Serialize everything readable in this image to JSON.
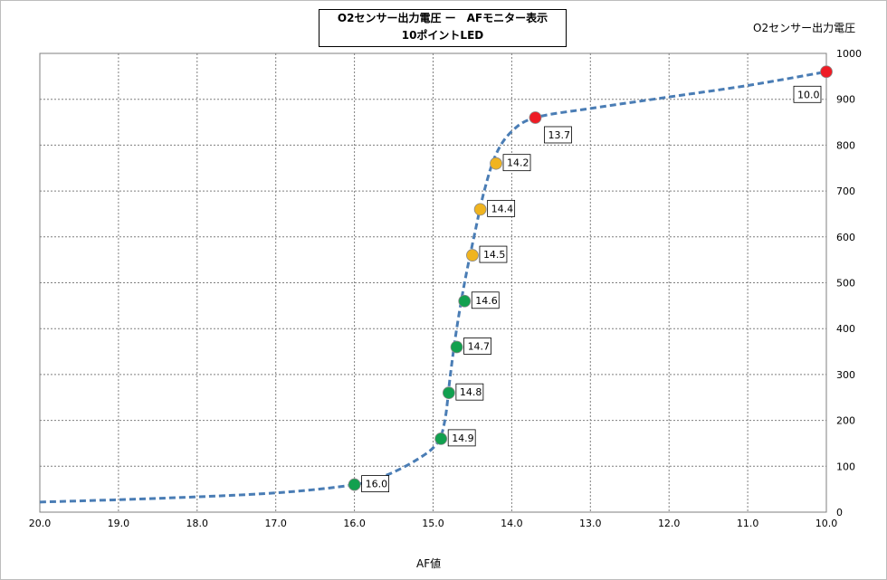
{
  "chart_data": {
    "type": "scatter",
    "title": "O2センサー出力電圧 ー　AFモニター表示",
    "subtitle": "10ポイントLED",
    "xlabel": "AF値",
    "ylabel": "O2センサー出力電圧",
    "xlim": [
      20.0,
      10.0
    ],
    "x_reversed": true,
    "ylim": [
      0,
      1000
    ],
    "x_ticks": [
      "20.0",
      "19.0",
      "18.0",
      "17.0",
      "16.0",
      "15.0",
      "14.0",
      "13.0",
      "12.0",
      "11.0",
      "10.0"
    ],
    "y_ticks": [
      "0",
      "100",
      "200",
      "300",
      "400",
      "500",
      "600",
      "700",
      "800",
      "900",
      "1000"
    ],
    "grid": true,
    "curve": {
      "style": "dashed",
      "color": "#4a7db5",
      "points": [
        [
          20.0,
          22
        ],
        [
          18.5,
          30
        ],
        [
          17.0,
          42
        ],
        [
          16.0,
          60
        ],
        [
          15.6,
          80
        ],
        [
          15.2,
          115
        ],
        [
          14.95,
          150
        ],
        [
          14.85,
          200
        ],
        [
          14.78,
          300
        ],
        [
          14.7,
          400
        ],
        [
          14.6,
          500
        ],
        [
          14.48,
          600
        ],
        [
          14.35,
          700
        ],
        [
          14.2,
          780
        ],
        [
          14.0,
          830
        ],
        [
          13.7,
          860
        ],
        [
          13.0,
          880
        ],
        [
          12.0,
          905
        ],
        [
          11.0,
          930
        ],
        [
          10.0,
          960
        ]
      ]
    },
    "series": [
      {
        "label": "16.0",
        "x": 16.0,
        "y": 60,
        "color": "#12a04f"
      },
      {
        "label": "14.9",
        "x": 14.9,
        "y": 160,
        "color": "#12a04f"
      },
      {
        "label": "14.8",
        "x": 14.8,
        "y": 260,
        "color": "#12a04f"
      },
      {
        "label": "14.7",
        "x": 14.7,
        "y": 360,
        "color": "#12a04f"
      },
      {
        "label": "14.6",
        "x": 14.6,
        "y": 460,
        "color": "#12a04f"
      },
      {
        "label": "14.5",
        "x": 14.5,
        "y": 560,
        "color": "#f0b41f"
      },
      {
        "label": "14.4",
        "x": 14.4,
        "y": 660,
        "color": "#f0b41f"
      },
      {
        "label": "14.2",
        "x": 14.2,
        "y": 760,
        "color": "#f0b41f"
      },
      {
        "label": "13.7",
        "x": 13.7,
        "y": 860,
        "color": "#ee1c25"
      },
      {
        "label": "10.0",
        "x": 10.0,
        "y": 960,
        "color": "#ee1c25"
      }
    ]
  }
}
